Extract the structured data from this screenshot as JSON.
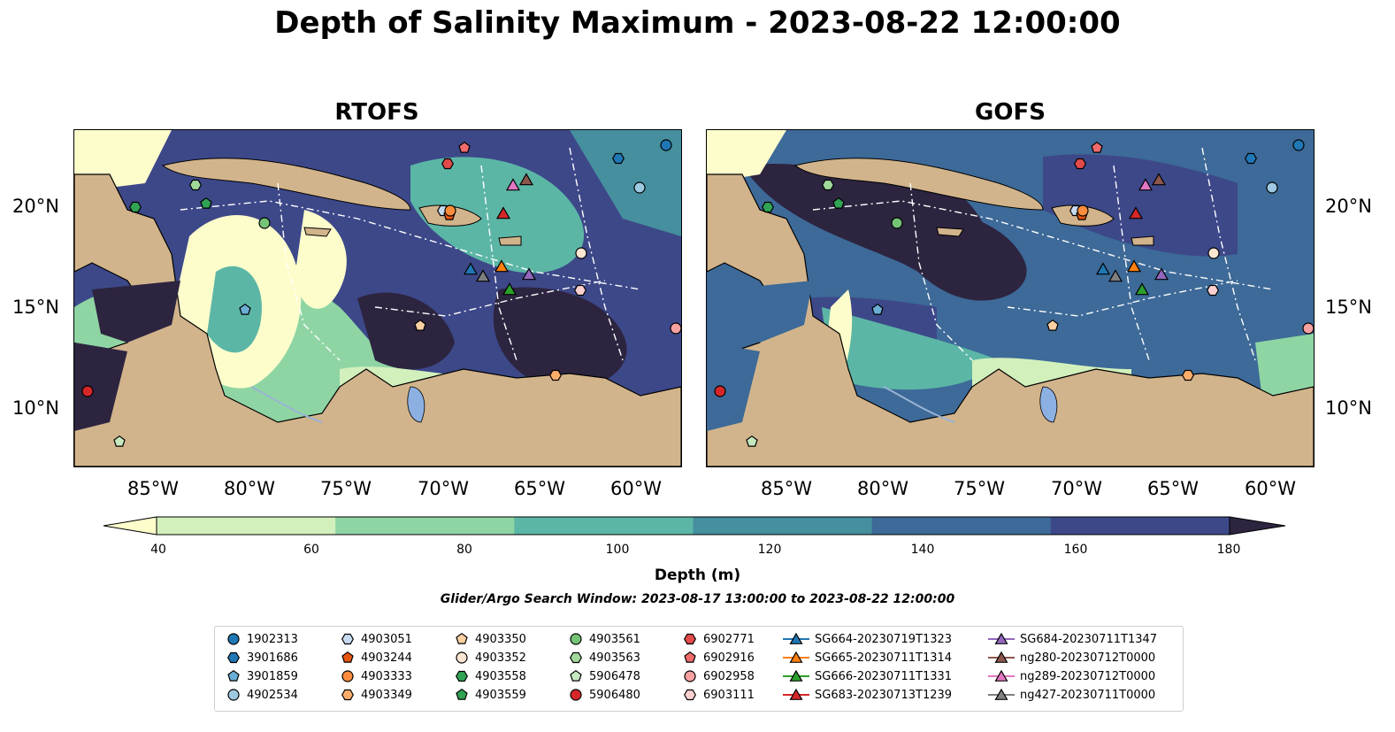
{
  "title": "Depth of Salinity Maximum - 2023-08-22 12:00:00",
  "panels": [
    {
      "title": "RTOFS"
    },
    {
      "title": "GOFS"
    }
  ],
  "lon_ticks": [
    "85°W",
    "80°W",
    "75°W",
    "70°W",
    "65°W",
    "60°W"
  ],
  "lat_ticks": [
    "20°N",
    "15°N",
    "10°N"
  ],
  "colorbar": {
    "label": "Depth (m)",
    "ticks": [
      "40",
      "60",
      "80",
      "100",
      "120",
      "140",
      "160",
      "180"
    ],
    "colors": [
      "#fdfdcc",
      "#d2f0bc",
      "#8fd5a4",
      "#5cb6a6",
      "#458f9e",
      "#3d6a98",
      "#3d4889",
      "#2d2440"
    ]
  },
  "search_window": "Glider/Argo Search Window: 2023-08-17 13:00:00 to 2023-08-22 12:00:00",
  "legend": [
    {
      "label": "1902313",
      "marker": "circle",
      "color": "#1f77b4"
    },
    {
      "label": "3901686",
      "marker": "hexagon",
      "color": "#1f77b4"
    },
    {
      "label": "3901859",
      "marker": "pentagon",
      "color": "#6baed6"
    },
    {
      "label": "4902534",
      "marker": "circle",
      "color": "#9ecae1"
    },
    {
      "label": "4903051",
      "marker": "hexagon",
      "color": "#c6dbef"
    },
    {
      "label": "4903244",
      "marker": "pentagon",
      "color": "#e6550d"
    },
    {
      "label": "4903333",
      "marker": "circle",
      "color": "#fd8d3c"
    },
    {
      "label": "4903349",
      "marker": "hexagon",
      "color": "#fdae6b"
    },
    {
      "label": "4903350",
      "marker": "pentagon",
      "color": "#fdd0a2"
    },
    {
      "label": "4903352",
      "marker": "circle",
      "color": "#fde7d2"
    },
    {
      "label": "4903558",
      "marker": "hexagon",
      "color": "#31a354"
    },
    {
      "label": "4903559",
      "marker": "pentagon",
      "color": "#31a354"
    },
    {
      "label": "4903561",
      "marker": "circle",
      "color": "#74c476"
    },
    {
      "label": "4903563",
      "marker": "hexagon",
      "color": "#a1d99b"
    },
    {
      "label": "5906478",
      "marker": "pentagon",
      "color": "#c7e9c0"
    },
    {
      "label": "5906480",
      "marker": "circle",
      "color": "#d62728"
    },
    {
      "label": "6902771",
      "marker": "hexagon",
      "color": "#e34a4a"
    },
    {
      "label": "6902916",
      "marker": "pentagon",
      "color": "#f06b6b"
    },
    {
      "label": "6902958",
      "marker": "circle",
      "color": "#f7a1a1"
    },
    {
      "label": "6903111",
      "marker": "hexagon",
      "color": "#fcd0d0"
    },
    {
      "label": "SG664-20230719T1323",
      "marker": "triangle",
      "color": "#1f77b4"
    },
    {
      "label": "SG665-20230711T1314",
      "marker": "triangle",
      "color": "#ff7f0e"
    },
    {
      "label": "SG666-20230711T1331",
      "marker": "triangle",
      "color": "#2ca02c"
    },
    {
      "label": "SG683-20230713T1239",
      "marker": "triangle",
      "color": "#d62728"
    },
    {
      "label": "SG684-20230711T1347",
      "marker": "triangle",
      "color": "#9467bd"
    },
    {
      "label": "ng280-20230712T0000",
      "marker": "triangle",
      "color": "#8c564b"
    },
    {
      "label": "ng289-20230712T0000",
      "marker": "triangle",
      "color": "#e377c2"
    },
    {
      "label": "ng427-20230711T0000",
      "marker": "triangle",
      "color": "#7f7f7f"
    }
  ]
}
